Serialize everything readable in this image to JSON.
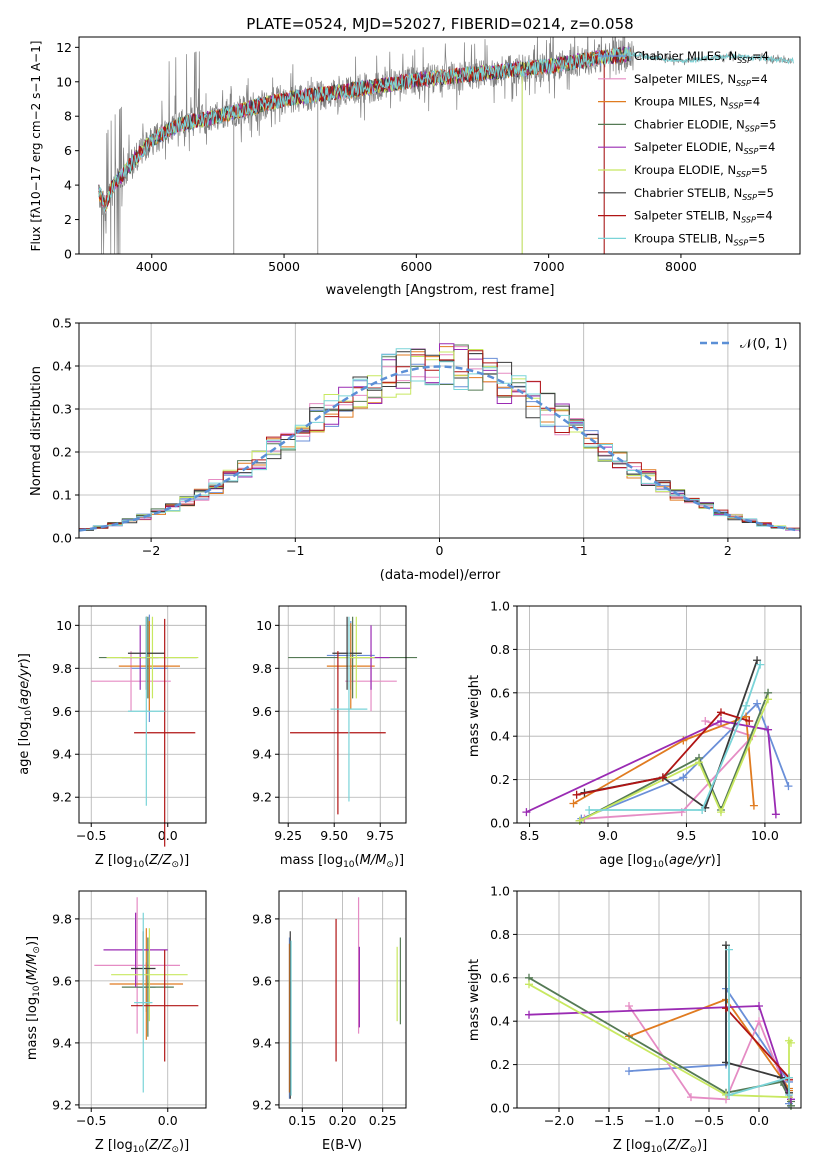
{
  "title": "PLATE=0524, MJD=52027, FIBERID=0214, z=0.058",
  "colors": {
    "Chabrier MILES": "#6a8fd8",
    "Salpeter MILES": "#e58cc4",
    "Kroupa MILES": "#e07b20",
    "Chabrier ELODIE": "#557a55",
    "Salpeter ELODIE": "#9a2bb3",
    "Kroupa ELODIE": "#c8e860",
    "Chabrier STELIB": "#3a3a3a",
    "Salpeter STELIB": "#b01515",
    "Kroupa STELIB": "#7ad4d8",
    "data": "#808080",
    "normal": "#5b8fd6"
  },
  "chart_data": [
    {
      "id": "spectrum",
      "type": "line",
      "xlabel": "wavelength [Angstrom, rest frame]",
      "ylabel": "Flux [f$_\\lambda$10$^{-17}$ erg cm$^{-2}$ s$^{-1}$ A$^{-1}$]",
      "ylabel_text": "Flux [fλ10−17 erg cm−2 s−1 A−1]",
      "xlim": [
        3450,
        8900
      ],
      "ylim": [
        0,
        12.6
      ],
      "xticks": [
        4000,
        5000,
        6000,
        7000,
        8000
      ],
      "yticks": [
        0,
        2,
        4,
        6,
        8,
        10,
        12
      ],
      "continuum": {
        "x": [
          3600,
          3650,
          3700,
          3800,
          3900,
          4000,
          4200,
          4500,
          5000,
          5500,
          6000,
          6500,
          7000,
          7300,
          7600,
          8000,
          8400,
          8850
        ],
        "y": [
          3.6,
          2.8,
          3.9,
          4.8,
          5.8,
          6.6,
          7.5,
          8.0,
          9.0,
          9.5,
          10.1,
          10.5,
          10.9,
          11.3,
          11.6,
          11.2,
          11.5,
          11.2
        ]
      },
      "legend": [
        {
          "label": "Chabrier MILES, N",
          "sub": "SSP",
          "eq": "=4"
        },
        {
          "label": "Salpeter MILES, N",
          "sub": "SSP",
          "eq": "=4"
        },
        {
          "label": "Kroupa MILES, N",
          "sub": "SSP",
          "eq": "=4"
        },
        {
          "label": "Chabrier ELODIE, N",
          "sub": "SSP",
          "eq": "=5"
        },
        {
          "label": "Salpeter ELODIE, N",
          "sub": "SSP",
          "eq": "=4"
        },
        {
          "label": "Kroupa ELODIE, N",
          "sub": "SSP",
          "eq": "=5"
        },
        {
          "label": "Chabrier STELIB, N",
          "sub": "SSP",
          "eq": "=5"
        },
        {
          "label": "Salpeter STELIB, N",
          "sub": "SSP",
          "eq": "=4"
        },
        {
          "label": "Kroupa STELIB, N",
          "sub": "SSP",
          "eq": "=5"
        }
      ],
      "legend_placement": "top-right"
    },
    {
      "id": "residuals",
      "type": "histogram",
      "xlabel": "(data-model)/error",
      "ylabel": "Normed distribution",
      "xlim": [
        -2.5,
        2.5
      ],
      "ylim": [
        0,
        0.5
      ],
      "xticks": [
        -2,
        -1,
        0,
        1,
        2
      ],
      "xtick_labels": [
        "−2",
        "−1",
        "0",
        "1",
        "2"
      ],
      "yticks": [
        0,
        0.1,
        0.2,
        0.3,
        0.4,
        0.5
      ],
      "ytick_labels": [
        "0.0",
        "0.1",
        "0.2",
        "0.3",
        "0.4",
        "0.5"
      ],
      "bin_width": 0.1,
      "gaussian_label": "𝒩(0, 1)",
      "grid": true
    },
    {
      "id": "age-vs-Z",
      "type": "errorbar",
      "xlabel": "Z [log10(Z/Z☉)]",
      "ylabel": "age  [log10(age/yr)]",
      "xlim": [
        -0.58,
        0.25
      ],
      "ylim": [
        9.08,
        10.09
      ],
      "xticks": [
        -0.5,
        0.0
      ],
      "xtick_labels": [
        "−0.5",
        "0.0"
      ],
      "yticks": [
        9.2,
        9.4,
        9.6,
        9.8,
        10.0
      ],
      "points": [
        {
          "model": "Chabrier MILES",
          "x": -0.12,
          "xerr": 0.12,
          "y": 9.8,
          "yerr": 0.25
        },
        {
          "model": "Salpeter MILES",
          "x": -0.24,
          "xerr": 0.26,
          "y": 9.74,
          "yerr": 0.14
        },
        {
          "model": "Kroupa MILES",
          "x": -0.12,
          "xerr": 0.2,
          "y": 9.81,
          "yerr": 0.21
        },
        {
          "model": "Chabrier ELODIE",
          "x": -0.13,
          "xerr": 0.32,
          "y": 9.85,
          "yerr": 0.19
        },
        {
          "model": "Salpeter ELODIE",
          "x": -0.18,
          "xerr": 0.12,
          "y": 9.85,
          "yerr": 0.15
        },
        {
          "model": "Kroupa ELODIE",
          "x": -0.1,
          "xerr": 0.3,
          "y": 9.85,
          "yerr": 0.19
        },
        {
          "model": "Chabrier STELIB",
          "x": -0.14,
          "xerr": 0.12,
          "y": 9.87,
          "yerr": 0.17
        },
        {
          "model": "Salpeter STELIB",
          "x": -0.02,
          "xerr": 0.2,
          "y": 9.5,
          "yerr": 0.53
        },
        {
          "model": "Kroupa STELIB",
          "x": -0.14,
          "xerr": 0.12,
          "y": 9.6,
          "yerr": 0.44
        }
      ]
    },
    {
      "id": "age-vs-mass",
      "type": "errorbar",
      "xlabel": "mass [log10(M/M☉)]",
      "xlim": [
        9.2,
        9.89
      ],
      "ylim": [
        9.08,
        10.09
      ],
      "xticks": [
        9.25,
        9.5,
        9.75
      ],
      "xtick_labels": [
        "9.25",
        "9.50",
        "9.75"
      ],
      "yticks": [
        9.2,
        9.4,
        9.6,
        9.8,
        10.0
      ],
      "points": [
        {
          "model": "Chabrier MILES",
          "x": 9.59,
          "xerr": 0.13,
          "y": 9.86,
          "yerr": 0.16
        },
        {
          "model": "Salpeter MILES",
          "x": 9.7,
          "xerr": 0.14,
          "y": 9.74,
          "yerr": 0.14
        },
        {
          "model": "Kroupa MILES",
          "x": 9.59,
          "xerr": 0.13,
          "y": 9.81,
          "yerr": 0.2
        },
        {
          "model": "Chabrier ELODIE",
          "x": 9.6,
          "xerr": 0.35,
          "y": 9.85,
          "yerr": 0.19
        },
        {
          "model": "Salpeter ELODIE",
          "x": 9.7,
          "xerr": 0.1,
          "y": 9.85,
          "yerr": 0.15
        },
        {
          "model": "Kroupa ELODIE",
          "x": 9.62,
          "xerr": 0.1,
          "y": 9.85,
          "yerr": 0.19
        },
        {
          "model": "Chabrier STELIB",
          "x": 9.57,
          "xerr": 0.08,
          "y": 9.87,
          "yerr": 0.17
        },
        {
          "model": "Salpeter STELIB",
          "x": 9.52,
          "xerr": 0.26,
          "y": 9.5,
          "yerr": 0.38
        },
        {
          "model": "Kroupa STELIB",
          "x": 9.58,
          "xerr": 0.1,
          "y": 9.61,
          "yerr": 0.43
        }
      ]
    },
    {
      "id": "weight-vs-age",
      "type": "line",
      "xlabel": "age  [log10(age/yr)]",
      "ylabel": "mass weight",
      "xlim": [
        8.42,
        10.23
      ],
      "ylim": [
        0,
        1
      ],
      "xticks": [
        8.5,
        9.0,
        9.5,
        10.0
      ],
      "xtick_labels": [
        "8.5",
        "9.0",
        "9.5",
        "10.0"
      ],
      "yticks": [
        0,
        0.2,
        0.4,
        0.6,
        0.8,
        1.0
      ],
      "ytick_labels": [
        "0.0",
        "0.2",
        "0.4",
        "0.6",
        "0.8",
        "1.0"
      ],
      "series": [
        {
          "model": "Chabrier MILES",
          "x": [
            8.83,
            9.48,
            9.95,
            10.15
          ],
          "y": [
            0.02,
            0.21,
            0.55,
            0.17
          ]
        },
        {
          "model": "Salpeter MILES",
          "x": [
            8.85,
            9.47,
            9.92,
            9.62
          ],
          "y": [
            0.02,
            0.05,
            0.4,
            0.47
          ]
        },
        {
          "model": "Kroupa MILES",
          "x": [
            8.78,
            9.48,
            9.88,
            9.93
          ],
          "y": [
            0.09,
            0.38,
            0.49,
            0.08
          ]
        },
        {
          "model": "Chabrier ELODIE",
          "x": [
            8.82,
            9.58,
            9.72,
            10.02
          ],
          "y": [
            0.01,
            0.3,
            0.06,
            0.6
          ]
        },
        {
          "model": "Salpeter ELODIE",
          "x": [
            8.48,
            9.72,
            10.02,
            10.07
          ],
          "y": [
            0.05,
            0.47,
            0.43,
            0.04
          ]
        },
        {
          "model": "Kroupa ELODIE",
          "x": [
            8.82,
            9.58,
            9.72,
            10.02
          ],
          "y": [
            0.01,
            0.28,
            0.05,
            0.57
          ]
        },
        {
          "model": "Chabrier STELIB",
          "x": [
            8.85,
            9.35,
            9.62,
            9.95
          ],
          "y": [
            0.14,
            0.21,
            0.07,
            0.75
          ]
        },
        {
          "model": "Salpeter STELIB",
          "x": [
            8.8,
            9.35,
            9.72,
            9.9
          ],
          "y": [
            0.13,
            0.21,
            0.51,
            0.47
          ]
        },
        {
          "model": "Kroupa STELIB",
          "x": [
            8.88,
            9.6,
            9.88,
            9.97
          ],
          "y": [
            0.06,
            0.06,
            0.54,
            0.73
          ]
        }
      ]
    },
    {
      "id": "mass-vs-Z",
      "type": "errorbar",
      "xlabel": "Z [log10(Z/Z☉)]",
      "ylabel": "mass [log10(M/M☉)]",
      "xlim": [
        -0.58,
        0.25
      ],
      "ylim": [
        9.19,
        9.89
      ],
      "xticks": [
        -0.5,
        0.0
      ],
      "xtick_labels": [
        "−0.5",
        "0.0"
      ],
      "yticks": [
        9.2,
        9.4,
        9.6,
        9.8
      ],
      "points": [
        {
          "model": "Chabrier MILES",
          "x": -0.14,
          "xerr": 0.06,
          "y": 9.58,
          "yerr": 0.08
        },
        {
          "model": "Salpeter MILES",
          "x": -0.2,
          "xerr": 0.28,
          "y": 9.65,
          "yerr": 0.22
        },
        {
          "model": "Kroupa MILES",
          "x": -0.14,
          "xerr": 0.24,
          "y": 9.59,
          "yerr": 0.18
        },
        {
          "model": "Chabrier ELODIE",
          "x": -0.13,
          "xerr": 0.17,
          "y": 9.58,
          "yerr": 0.16
        },
        {
          "model": "Salpeter ELODIE",
          "x": -0.21,
          "xerr": 0.21,
          "y": 9.7,
          "yerr": 0.12
        },
        {
          "model": "Kroupa ELODIE",
          "x": -0.12,
          "xerr": 0.25,
          "y": 9.62,
          "yerr": 0.15
        },
        {
          "model": "Chabrier STELIB",
          "x": -0.16,
          "xerr": 0.08,
          "y": 9.64,
          "yerr": 0.12
        },
        {
          "model": "Salpeter STELIB",
          "x": -0.02,
          "xerr": 0.22,
          "y": 9.52,
          "yerr": 0.18
        },
        {
          "model": "Kroupa STELIB",
          "x": -0.16,
          "xerr": 0.06,
          "y": 9.53,
          "yerr": 0.29
        }
      ]
    },
    {
      "id": "mass-vs-EBV",
      "type": "errorbar",
      "xlabel": "E(B-V)",
      "xlim": [
        0.121,
        0.279
      ],
      "ylim": [
        9.19,
        9.89
      ],
      "xticks": [
        0.15,
        0.2,
        0.25
      ],
      "xtick_labels": [
        "0.15",
        "0.20",
        "0.25"
      ],
      "yticks": [
        9.2,
        9.4,
        9.6,
        9.8
      ],
      "points": [
        {
          "model": "Chabrier MILES",
          "x": 0.134,
          "y": 9.48,
          "yerr": 0.26
        },
        {
          "model": "Salpeter MILES",
          "x": 0.22,
          "y": 9.65,
          "yerr": 0.22
        },
        {
          "model": "Kroupa MILES",
          "x": 0.134,
          "y": 9.48,
          "yerr": 0.24
        },
        {
          "model": "Chabrier ELODIE",
          "x": 0.272,
          "y": 9.6,
          "yerr": 0.14
        },
        {
          "model": "Salpeter ELODIE",
          "x": 0.221,
          "y": 9.58,
          "yerr": 0.13
        },
        {
          "model": "Kroupa ELODIE",
          "x": 0.268,
          "y": 9.59,
          "yerr": 0.12
        },
        {
          "model": "Chabrier STELIB",
          "x": 0.135,
          "y": 9.49,
          "yerr": 0.27
        },
        {
          "model": "Salpeter STELIB",
          "x": 0.192,
          "y": 9.57,
          "yerr": 0.23
        },
        {
          "model": "Kroupa STELIB",
          "x": 0.136,
          "y": 9.48,
          "yerr": 0.25
        }
      ]
    },
    {
      "id": "weight-vs-Z",
      "type": "line",
      "xlabel": "Z [log10(Z/Z☉)]",
      "ylabel": "mass weight",
      "xlim": [
        -2.42,
        0.42
      ],
      "ylim": [
        0,
        1
      ],
      "xticks": [
        -2.0,
        -1.5,
        -1.0,
        -0.5,
        0.0
      ],
      "xtick_labels": [
        "−2.0",
        "−1.5",
        "−1.0",
        "−0.5",
        "0.0"
      ],
      "yticks": [
        0,
        0.2,
        0.4,
        0.6,
        0.8,
        1.0
      ],
      "ytick_labels": [
        "0.0",
        "0.2",
        "0.4",
        "0.6",
        "0.8",
        "1.0"
      ],
      "series": [
        {
          "model": "Chabrier MILES",
          "x": [
            -1.3,
            -0.33,
            -0.33,
            0.3,
            0.3
          ],
          "y": [
            0.17,
            0.2,
            0.55,
            0.12,
            0.02
          ]
        },
        {
          "model": "Salpeter MILES",
          "x": [
            -1.3,
            -0.68,
            -0.33,
            0.0,
            0.3
          ],
          "y": [
            0.47,
            0.05,
            0.04,
            0.4,
            0.05
          ]
        },
        {
          "model": "Kroupa MILES",
          "x": [
            -1.3,
            -0.33,
            0.3,
            0.3
          ],
          "y": [
            0.33,
            0.5,
            0.09,
            0.08
          ]
        },
        {
          "model": "Chabrier ELODIE",
          "x": [
            -2.3,
            -0.33,
            0.22,
            0.32,
            0.32
          ],
          "y": [
            0.6,
            0.07,
            0.12,
            0.03,
            0.01
          ]
        },
        {
          "model": "Salpeter ELODIE",
          "x": [
            -2.3,
            0.0,
            0.3,
            0.32
          ],
          "y": [
            0.43,
            0.47,
            0.05,
            0.04
          ]
        },
        {
          "model": "Kroupa ELODIE",
          "x": [
            -2.3,
            -0.33,
            0.3,
            0.3,
            0.32
          ],
          "y": [
            0.57,
            0.06,
            0.05,
            0.31,
            0.3
          ]
        },
        {
          "model": "Chabrier STELIB",
          "x": [
            -0.33,
            -0.33,
            0.22,
            0.3
          ],
          "y": [
            0.75,
            0.21,
            0.14,
            0.07
          ]
        },
        {
          "model": "Salpeter STELIB",
          "x": [
            -0.33,
            0.3,
            0.3
          ],
          "y": [
            0.46,
            0.14,
            0.13
          ]
        },
        {
          "model": "Kroupa STELIB",
          "x": [
            -0.3,
            -0.3,
            0.3,
            0.3
          ],
          "y": [
            0.73,
            0.06,
            0.14,
            0.06
          ]
        }
      ]
    }
  ]
}
